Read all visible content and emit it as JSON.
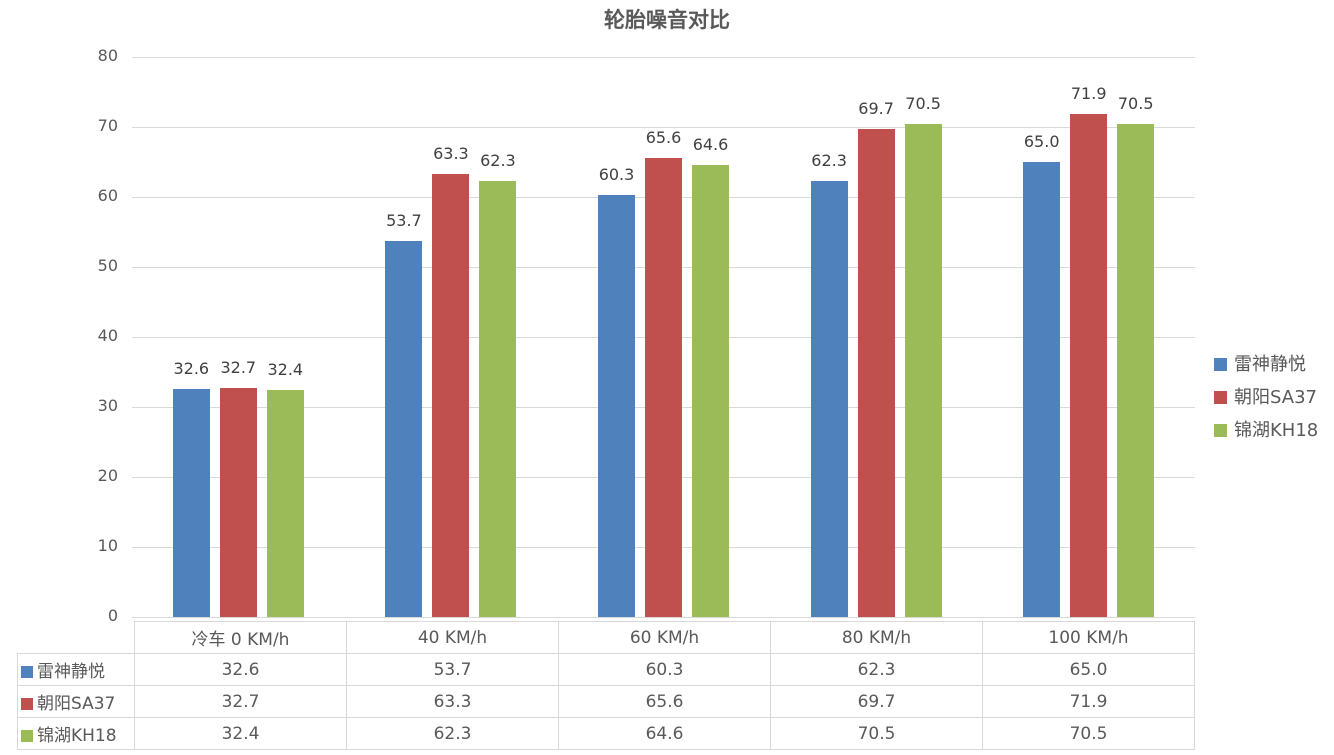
{
  "chart_data": {
    "type": "bar",
    "title": "轮胎噪音对比",
    "xlabel": "",
    "ylabel": "",
    "ylim": [
      0,
      80
    ],
    "yticks": [
      0,
      10,
      20,
      30,
      40,
      50,
      60,
      70,
      80
    ],
    "grid": true,
    "legend_position": "right",
    "data_labels": true,
    "data_table": true,
    "categories": [
      "冷车 0 KM/h",
      "40 KM/h",
      "60 KM/h",
      "80 KM/h",
      "100 KM/h"
    ],
    "series": [
      {
        "name": "雷神静悦",
        "color": "#4f81bd",
        "values": [
          32.6,
          53.7,
          60.3,
          62.3,
          65.0
        ],
        "labels": [
          "32.6",
          "53.7",
          "60.3",
          "62.3",
          "65.0"
        ]
      },
      {
        "name": "朝阳SA37",
        "color": "#c0504d",
        "values": [
          32.7,
          63.3,
          65.6,
          69.7,
          71.9
        ],
        "labels": [
          "32.7",
          "63.3",
          "65.6",
          "69.7",
          "71.9"
        ]
      },
      {
        "name": "锦湖KH18",
        "color": "#9bbb59",
        "values": [
          32.4,
          62.3,
          64.6,
          70.5,
          70.5
        ],
        "labels": [
          "32.4",
          "62.3",
          "64.6",
          "70.5",
          "70.5"
        ]
      }
    ]
  }
}
